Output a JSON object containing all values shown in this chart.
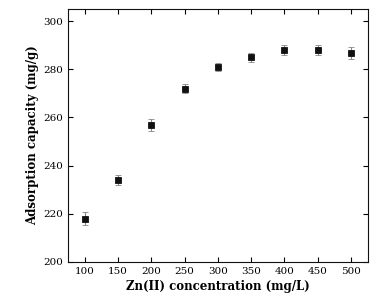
{
  "x": [
    100,
    150,
    200,
    250,
    300,
    350,
    400,
    450,
    500
  ],
  "y": [
    218,
    234,
    257,
    272,
    281,
    285,
    288,
    288,
    287
  ],
  "yerr": [
    2.5,
    2.0,
    2.5,
    2.0,
    1.5,
    2.0,
    2.0,
    2.0,
    2.5
  ],
  "xlabel": "Zn(II) concentration (mg/L)",
  "ylabel": "Adsorption capacity (mg/g)",
  "xlim": [
    75,
    525
  ],
  "ylim": [
    200,
    305
  ],
  "xticks": [
    100,
    150,
    200,
    250,
    300,
    350,
    400,
    450,
    500
  ],
  "yticks": [
    200,
    220,
    240,
    260,
    280,
    300
  ],
  "marker": "s",
  "marker_color": "#111111",
  "ecolor": "#888888",
  "markersize": 4,
  "capsize": 2.5,
  "elinewidth": 0.8,
  "background_color": "#ffffff",
  "tick_fontsize": 7.5,
  "label_fontsize": 8.5
}
